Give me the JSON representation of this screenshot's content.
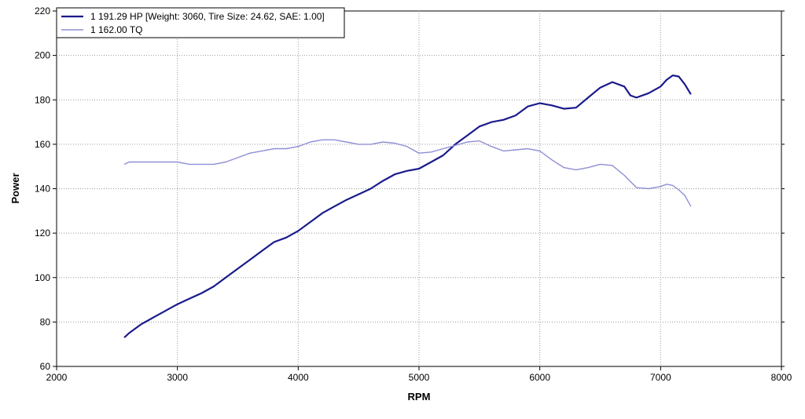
{
  "chart_data": {
    "type": "line",
    "xlabel": "RPM",
    "ylabel": "Power",
    "xlim": [
      2000,
      8000
    ],
    "ylim": [
      60,
      220
    ],
    "x_ticks": [
      2000,
      3000,
      4000,
      5000,
      6000,
      7000,
      8000
    ],
    "y_ticks": [
      60,
      80,
      100,
      120,
      140,
      160,
      180,
      200,
      220
    ],
    "grid": true,
    "legend_position": "top-left",
    "series": [
      {
        "name": "1 191.29 HP [Weight: 3060, Tire Size: 24.62, SAE: 1.00]",
        "color": "#1a1a8c",
        "points": [
          [
            2560,
            73
          ],
          [
            2600,
            75
          ],
          [
            2650,
            77
          ],
          [
            2700,
            79
          ],
          [
            2750,
            80.5
          ],
          [
            2800,
            82
          ],
          [
            2900,
            85
          ],
          [
            3000,
            88
          ],
          [
            3100,
            90.5
          ],
          [
            3200,
            93
          ],
          [
            3300,
            96
          ],
          [
            3400,
            100
          ],
          [
            3500,
            104
          ],
          [
            3600,
            108
          ],
          [
            3700,
            112
          ],
          [
            3800,
            116
          ],
          [
            3900,
            118
          ],
          [
            4000,
            121
          ],
          [
            4100,
            125
          ],
          [
            4200,
            129
          ],
          [
            4300,
            132
          ],
          [
            4400,
            135
          ],
          [
            4500,
            137.5
          ],
          [
            4600,
            140
          ],
          [
            4700,
            143.5
          ],
          [
            4800,
            146.5
          ],
          [
            4900,
            148
          ],
          [
            5000,
            149
          ],
          [
            5100,
            152
          ],
          [
            5200,
            155
          ],
          [
            5300,
            160
          ],
          [
            5400,
            164
          ],
          [
            5500,
            168
          ],
          [
            5600,
            170
          ],
          [
            5700,
            171
          ],
          [
            5800,
            173
          ],
          [
            5900,
            177
          ],
          [
            6000,
            178.5
          ],
          [
            6050,
            178
          ],
          [
            6100,
            177.5
          ],
          [
            6200,
            176
          ],
          [
            6300,
            176.5
          ],
          [
            6400,
            181
          ],
          [
            6500,
            185.5
          ],
          [
            6600,
            188
          ],
          [
            6700,
            186
          ],
          [
            6750,
            182
          ],
          [
            6800,
            181
          ],
          [
            6900,
            183
          ],
          [
            7000,
            186
          ],
          [
            7050,
            189
          ],
          [
            7100,
            191
          ],
          [
            7150,
            190.5
          ],
          [
            7200,
            187
          ],
          [
            7250,
            182.5
          ]
        ]
      },
      {
        "name": "1 162.00 TQ",
        "color": "#8f8fd6",
        "points": [
          [
            2560,
            151
          ],
          [
            2600,
            152
          ],
          [
            2700,
            152
          ],
          [
            2800,
            152
          ],
          [
            2900,
            152
          ],
          [
            3000,
            152
          ],
          [
            3100,
            151
          ],
          [
            3200,
            151
          ],
          [
            3300,
            151
          ],
          [
            3400,
            152
          ],
          [
            3500,
            154
          ],
          [
            3600,
            156
          ],
          [
            3700,
            157
          ],
          [
            3800,
            158
          ],
          [
            3900,
            158
          ],
          [
            4000,
            159
          ],
          [
            4100,
            161
          ],
          [
            4200,
            162
          ],
          [
            4300,
            162
          ],
          [
            4400,
            161
          ],
          [
            4500,
            160
          ],
          [
            4600,
            160
          ],
          [
            4700,
            161
          ],
          [
            4800,
            160.5
          ],
          [
            4900,
            159
          ],
          [
            5000,
            156
          ],
          [
            5100,
            156.5
          ],
          [
            5200,
            158
          ],
          [
            5300,
            159.5
          ],
          [
            5400,
            161
          ],
          [
            5500,
            161.5
          ],
          [
            5600,
            159
          ],
          [
            5700,
            157
          ],
          [
            5800,
            157.5
          ],
          [
            5900,
            158
          ],
          [
            6000,
            157
          ],
          [
            6100,
            153
          ],
          [
            6200,
            149.5
          ],
          [
            6300,
            148.5
          ],
          [
            6400,
            149.5
          ],
          [
            6500,
            151
          ],
          [
            6600,
            150.5
          ],
          [
            6700,
            146
          ],
          [
            6800,
            140.5
          ],
          [
            6900,
            140
          ],
          [
            7000,
            141
          ],
          [
            7050,
            142
          ],
          [
            7100,
            141.5
          ],
          [
            7150,
            139.5
          ],
          [
            7200,
            137
          ],
          [
            7250,
            132
          ]
        ]
      }
    ]
  }
}
